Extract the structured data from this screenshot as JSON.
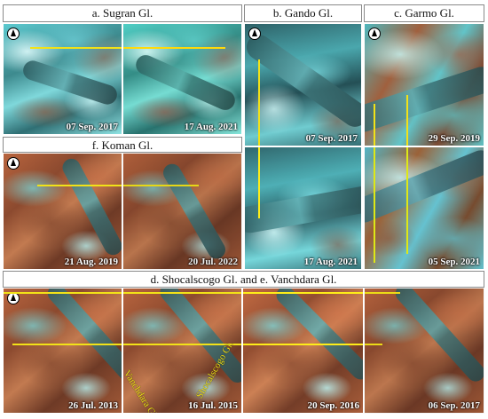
{
  "figure": {
    "titles": {
      "a": "a. Sugran Gl.",
      "b": "b.  Gando Gl.",
      "c": "c. Garmo Gl.",
      "f": "f. Koman Gl.",
      "de": "d. Shocalscogo Gl. and e. Vanchdara Gl."
    },
    "dates": {
      "a1": "07 Sep. 2017",
      "a2": "17 Aug. 2021",
      "b1": "07 Sep. 2017",
      "b2": "17 Aug. 2021",
      "c1": "29 Sep. 2019",
      "c2": "05 Sep. 2021",
      "f1": "21 Aug. 2019",
      "f2": "20 Jul. 2022",
      "de1": "26 Jul. 2013",
      "de2": "16 Jul. 2015",
      "de3": "20 Sep. 2016",
      "de4": "06 Sep. 2017"
    },
    "glacier_names": {
      "shocalscogo": "Shocalscogo Gl.",
      "vanchdara": "Vanchdara Gl."
    },
    "colors": {
      "reference_line": "#f2e218",
      "ice": "#5cc9cf",
      "rock": "#b8643e",
      "date_text": "#ffffff"
    },
    "icons": [
      "north-arrow-icon"
    ]
  }
}
